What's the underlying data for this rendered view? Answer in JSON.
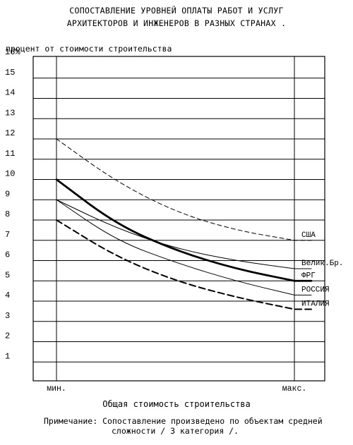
{
  "chart_data": {
    "type": "line",
    "title_lines": [
      "СОПОСТАВЛЕНИЕ УРОВНЕЙ ОПЛАТЫ РАБОТ И УСЛУГ",
      "АРХИТЕКТОРОВ И ИНЖЕНЕРОВ В РАЗНЫХ СТРАНАХ ."
    ],
    "ylabel": "процент от стоимости строительства",
    "xlabel": "Общая стоимость строительства",
    "ylim": [
      0,
      16
    ],
    "yticks": [
      "1",
      "2",
      "3",
      "4",
      "5",
      "6",
      "7",
      "8",
      "9",
      "10",
      "11",
      "12",
      "13",
      "14",
      "15",
      "16%"
    ],
    "x_tick_labels": [
      "мин.",
      "макс."
    ],
    "x": [
      0,
      0.25,
      0.5,
      0.75,
      1
    ],
    "grid": true,
    "series": [
      {
        "name": "США",
        "style": "dashed-thin",
        "values": [
          12,
          9.9,
          8.4,
          7.5,
          7.0
        ]
      },
      {
        "name": "Велик.Бр.",
        "style": "solid-thin",
        "values": [
          9.0,
          7.6,
          6.6,
          6.0,
          5.6
        ]
      },
      {
        "name": "ФРГ",
        "style": "solid-bold",
        "values": [
          10.0,
          7.8,
          6.5,
          5.6,
          5.0
        ]
      },
      {
        "name": "РОССИЯ",
        "style": "solid-thin",
        "values": [
          9.0,
          7.0,
          5.9,
          5.0,
          4.3
        ]
      },
      {
        "name": "ИТАЛИЯ",
        "style": "dashed-bold",
        "values": [
          8.0,
          6.2,
          5.0,
          4.2,
          3.6
        ]
      }
    ]
  },
  "note": {
    "line1": "Примечание: Сопоставление произведено по объектам средней",
    "line2": "сложности / 3 категория /."
  }
}
